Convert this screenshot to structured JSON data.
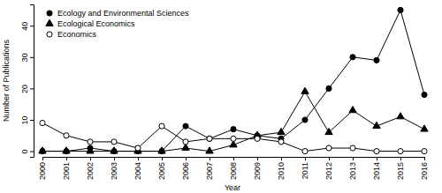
{
  "chart_data": {
    "type": "line",
    "x_label": "Year",
    "y_label": "Number of Publications",
    "categories": [
      "2000",
      "2001",
      "2002",
      "2003",
      "2004",
      "2005",
      "2006",
      "2007",
      "2008",
      "2009",
      "2010",
      "2011",
      "2012",
      "2013",
      "2014",
      "2015",
      "2016"
    ],
    "series": [
      {
        "name": "Ecology and Environmental Sciences",
        "color": "#000000",
        "marker": "circle",
        "values": [
          0,
          0,
          1,
          0,
          0,
          0,
          8,
          4,
          7,
          5,
          4,
          10,
          20,
          30,
          29,
          45,
          18
        ]
      },
      {
        "name": "Ecological Economics",
        "color": "#000000",
        "marker": "triangle",
        "values": [
          0,
          0,
          0,
          0,
          0,
          0,
          1,
          0,
          2,
          5,
          6,
          19,
          6,
          13,
          8,
          11,
          7
        ]
      },
      {
        "name": "Economics",
        "color": "#000000",
        "marker": "open-circle",
        "values": [
          9,
          5,
          3,
          3,
          1,
          8,
          3,
          4,
          4,
          4,
          3,
          0,
          1,
          1,
          0,
          0,
          0
        ]
      }
    ],
    "ylim": [
      -1.8,
      46.8
    ],
    "yticks": [
      0,
      10,
      20,
      30,
      40
    ],
    "legend": "top-left",
    "grid": false
  }
}
